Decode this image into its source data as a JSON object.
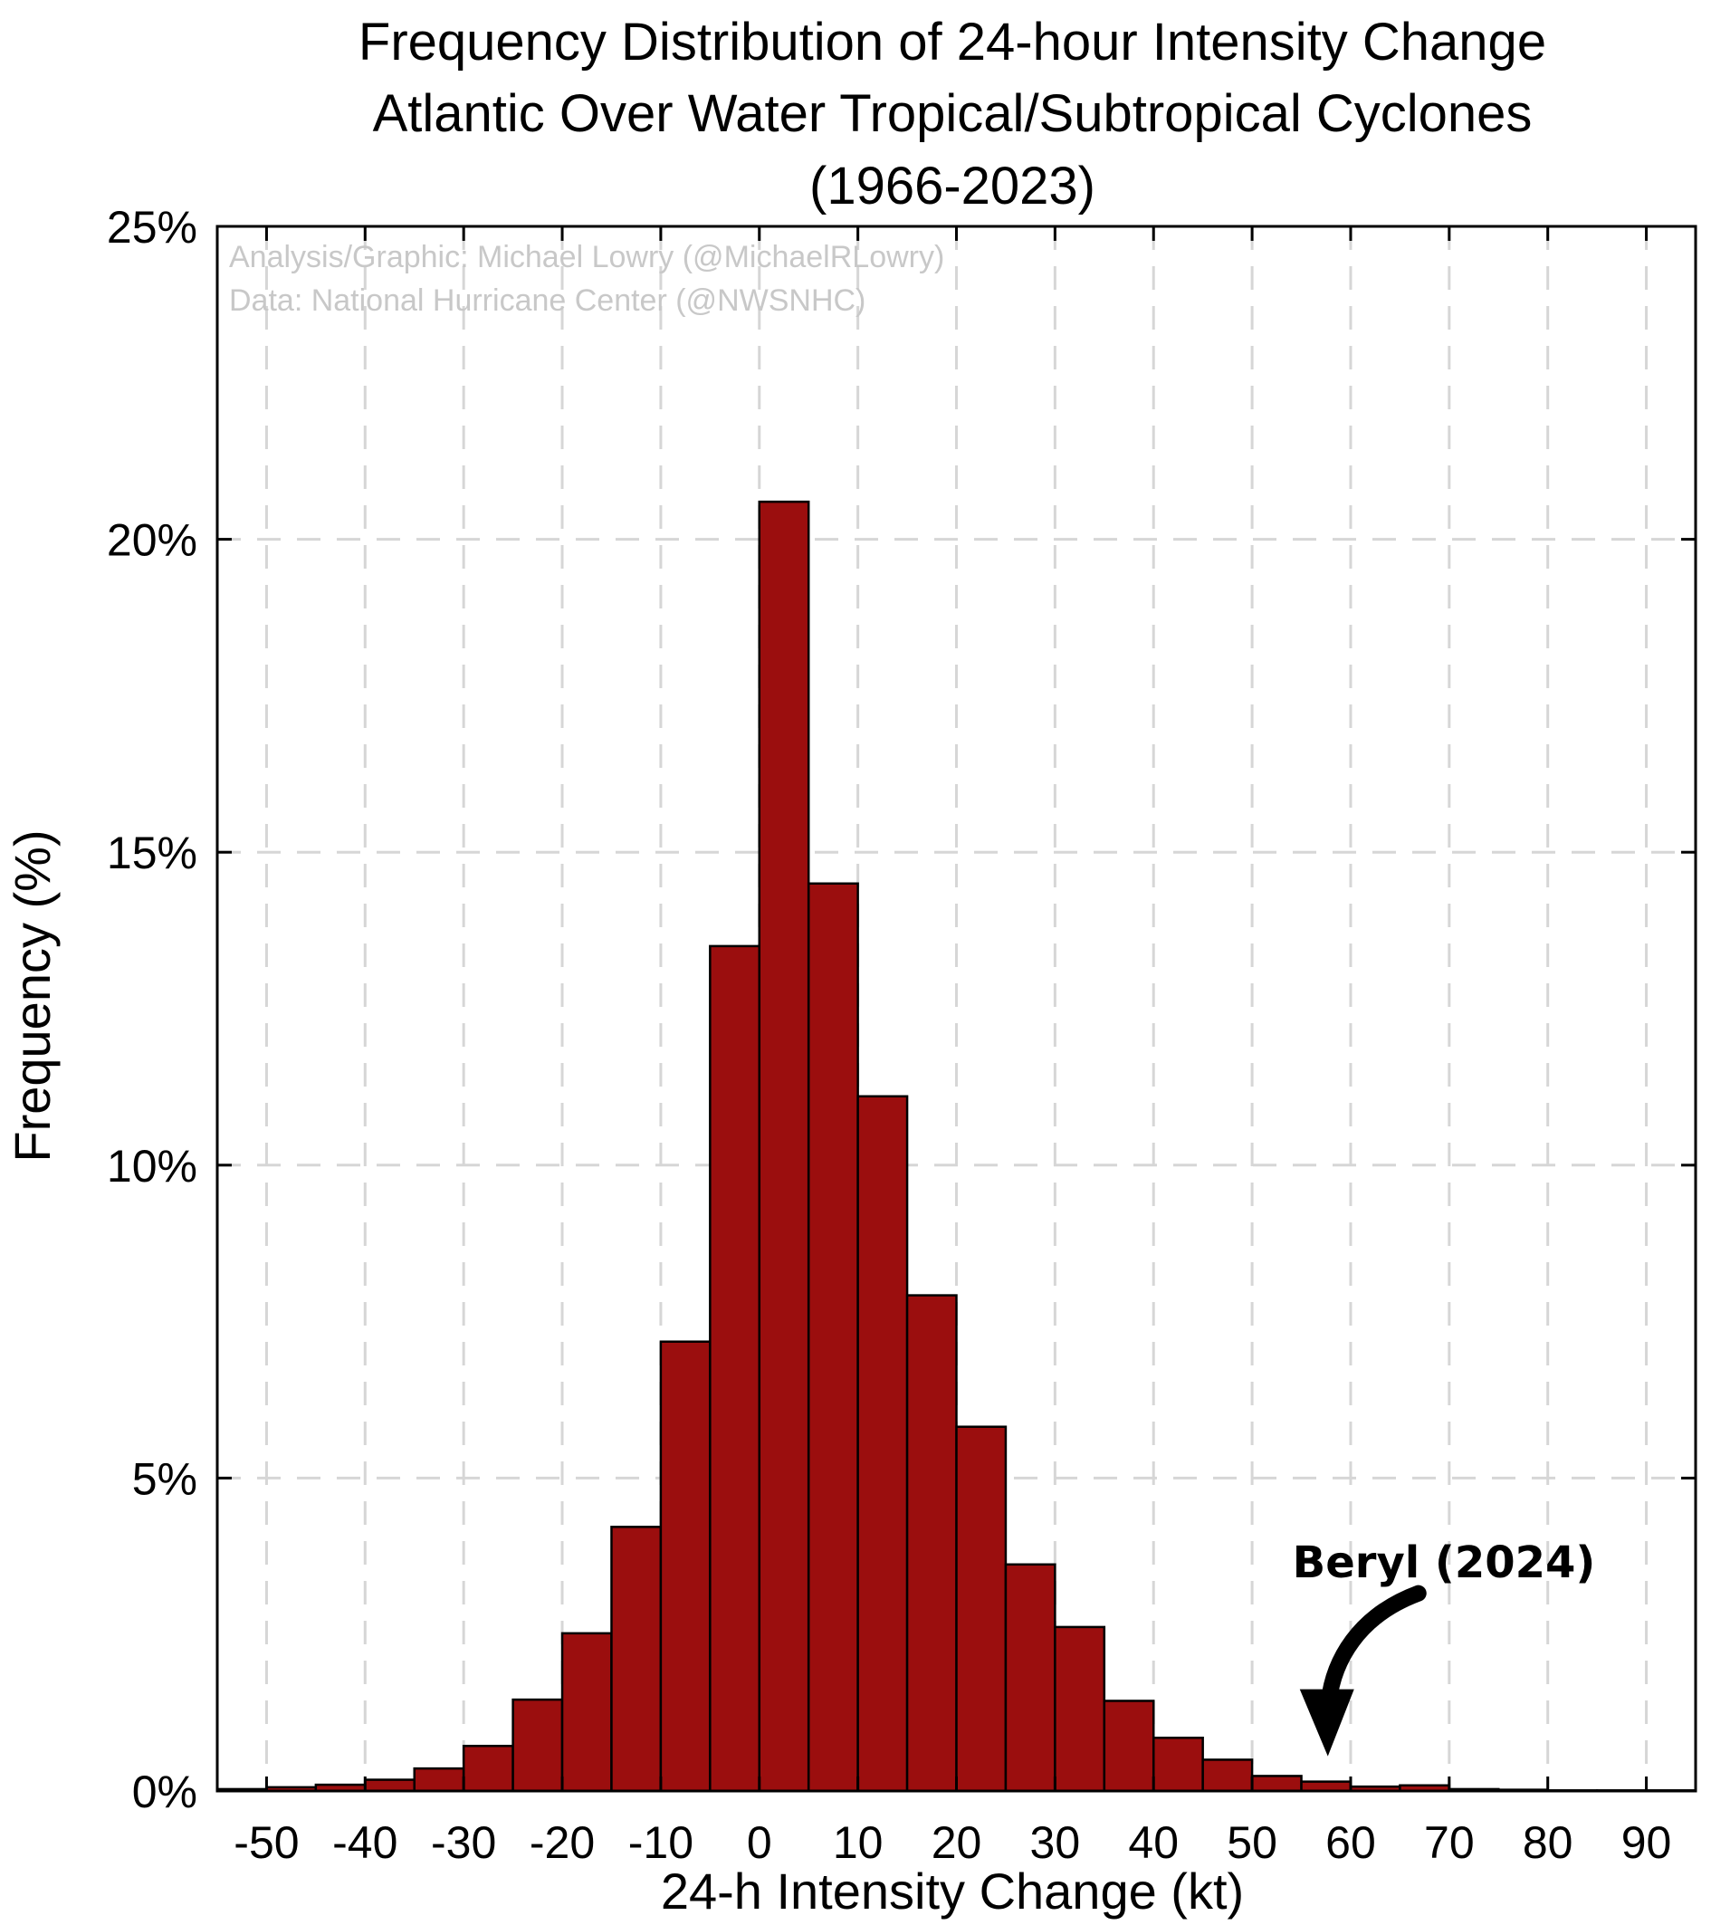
{
  "chart_data": {
    "type": "bar",
    "title_lines": [
      "Frequency Distribution of 24-hour Intensity Change",
      "Atlantic Over Water Tropical/Subtropical Cyclones",
      "(1966-2023)"
    ],
    "xlabel": "24-h Intensity Change (kt)",
    "ylabel": "Frequency (%)",
    "credits": [
      "Analysis/Graphic: Michael Lowry (@MichaelRLowry)",
      "Data: National Hurricane Center (@NWSNHC)"
    ],
    "xlim": [
      -55,
      95
    ],
    "ylim": [
      0,
      25
    ],
    "bin_width": 5,
    "x_ticks": [
      -50,
      -40,
      -30,
      -20,
      -10,
      0,
      10,
      20,
      30,
      40,
      50,
      60,
      70,
      80,
      90
    ],
    "x_tick_labels": [
      "-50",
      "-40",
      "-30",
      "-20",
      "-10",
      "0",
      "10",
      "20",
      "30",
      "40",
      "50",
      "60",
      "70",
      "80",
      "90"
    ],
    "y_ticks": [
      0,
      5,
      10,
      15,
      20,
      25
    ],
    "y_tick_labels": [
      "0%",
      "5%",
      "10%",
      "15%",
      "20%",
      "25%"
    ],
    "grid": true,
    "bar_color": "#9b0e0e",
    "bin_left_edges": [
      -55,
      -50,
      -45,
      -40,
      -35,
      -30,
      -25,
      -20,
      -15,
      -10,
      -5,
      0,
      5,
      10,
      15,
      20,
      25,
      30,
      35,
      40,
      45,
      50,
      55,
      60,
      65,
      70,
      75,
      80,
      85,
      90
    ],
    "values": [
      0.03,
      0.06,
      0.1,
      0.18,
      0.36,
      0.72,
      1.46,
      2.52,
      4.22,
      7.18,
      13.5,
      20.6,
      14.5,
      11.1,
      7.92,
      5.82,
      3.62,
      2.62,
      1.44,
      0.85,
      0.5,
      0.24,
      0.15,
      0.07,
      0.09,
      0.03,
      0.02,
      0.01,
      0.01,
      0.01
    ],
    "annotation": {
      "text": "Beryl (2024)",
      "x": 57.5
    }
  }
}
